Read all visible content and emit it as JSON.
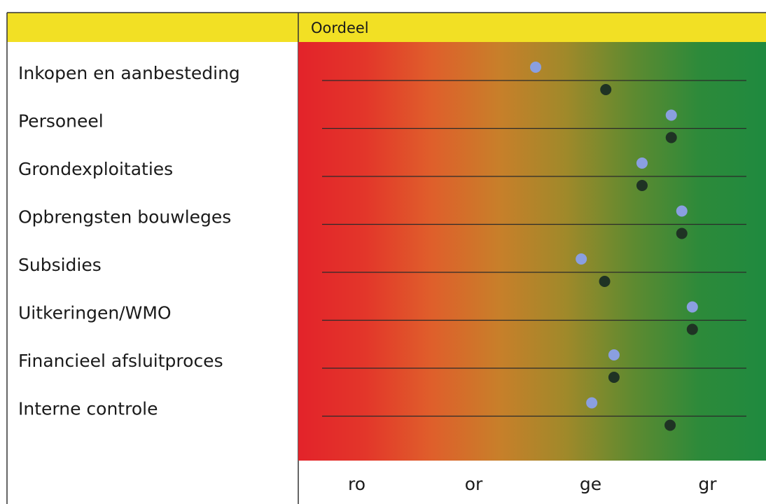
{
  "header": {
    "title": "Oordeel"
  },
  "chart_data": {
    "type": "scatter",
    "title": "Oordeel",
    "categories": [
      "Inkopen en aanbesteding",
      "Personeel",
      "Grondexploitaties",
      "Opbrengsten bouwleges",
      "Subsidies",
      "Uitkeringen/WMO",
      "Financieel afsluitproces",
      "Interne controle"
    ],
    "x_ticks": [
      "ro",
      "or",
      "ge",
      "gr"
    ],
    "x_range": [
      0.5,
      4.5
    ],
    "series": [
      {
        "values": [
          2.53,
          3.69,
          3.44,
          3.78,
          2.92,
          3.87,
          3.2,
          3.01
        ]
      },
      {
        "values": [
          3.13,
          3.69,
          3.44,
          3.78,
          3.12,
          3.87,
          3.2,
          3.68
        ]
      }
    ],
    "colors": {
      "header": "#f2e024",
      "gradient": [
        "#e3232a",
        "#e3362a",
        "#df5f2b",
        "#c87f2a",
        "#a0892a",
        "#5f8a30",
        "#2d8a3a",
        "#1f8a3f"
      ],
      "series": [
        "#8a9fe0",
        "#1f3324"
      ],
      "gridline": "#2a2a2a",
      "border": "#333333"
    }
  }
}
